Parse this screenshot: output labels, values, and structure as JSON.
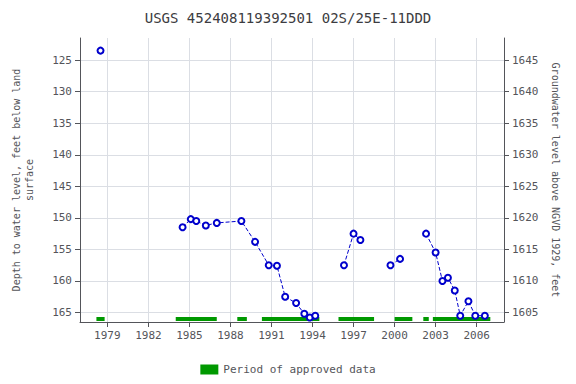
{
  "chart_data": {
    "type": "line",
    "title": "USGS 452408119392501 02S/25E-11DDD",
    "ylabel": "Depth to water level, feet below land\nsurface",
    "y2label": "Groundwater level above NGVD 1929, feet",
    "xlim": [
      1977.0,
      2008.0
    ],
    "xticks": [
      1979,
      1982,
      1985,
      1988,
      1991,
      1994,
      1997,
      2000,
      2003,
      2006
    ],
    "ylim": [
      166.5,
      121.5
    ],
    "yticks": [
      125,
      130,
      135,
      140,
      145,
      150,
      155,
      160,
      165
    ],
    "y2lim": [
      1603.5,
      1648.5
    ],
    "y2ticks": [
      1645,
      1640,
      1635,
      1630,
      1625,
      1620,
      1615,
      1610,
      1605
    ],
    "grid": true,
    "legend": "bottom",
    "series": [
      {
        "type": "line",
        "color": "#0000cc",
        "marker": "circle",
        "line_style": "dashed",
        "x": [
          1978.5
        ],
        "values": [
          123.5
        ]
      },
      {
        "type": "line",
        "color": "#0000cc",
        "marker": "circle",
        "line_style": "dashed",
        "x": [
          1984.5,
          1985.1,
          1985.5,
          1986.2,
          1987.0,
          1988.8,
          1989.8,
          1990.8,
          1991.4,
          1992.0,
          1992.8,
          1993.4,
          1993.8
        ],
        "values": [
          151.5,
          150.2,
          150.5,
          151.2,
          150.8,
          150.5,
          153.8,
          157.5,
          157.6,
          162.5,
          163.5,
          165.2,
          165.8
        ]
      },
      {
        "type": "line",
        "color": "#0000cc",
        "marker": "circle",
        "line_style": "dashed",
        "x": [
          1994.2
        ],
        "values": [
          165.5
        ]
      },
      {
        "type": "line",
        "color": "#0000cc",
        "marker": "circle",
        "line_style": "dashed",
        "x": [
          1996.3,
          1997.0,
          1997.5
        ],
        "values": [
          157.5,
          152.5,
          153.5
        ]
      },
      {
        "type": "line",
        "color": "#0000cc",
        "marker": "circle",
        "line_style": "dashed",
        "x": [
          1999.7,
          2000.4
        ],
        "values": [
          157.5,
          156.5
        ]
      },
      {
        "type": "line",
        "color": "#0000cc",
        "marker": "circle",
        "line_style": "dashed",
        "x": [
          2002.3,
          2003.0,
          2003.5,
          2003.9,
          2004.4,
          2004.8,
          2005.4,
          2005.9,
          2006.6
        ],
        "values": [
          152.5,
          155.5,
          160.0,
          159.5,
          161.5,
          165.5,
          163.2,
          165.5,
          165.5
        ]
      },
      {
        "type": "range",
        "name": "Period of approved data",
        "color": "#009900",
        "ranges": [
          [
            1978.2,
            1978.8
          ],
          [
            1984.0,
            1987.0
          ],
          [
            1988.5,
            1989.2
          ],
          [
            1990.3,
            1993.9
          ],
          [
            1993.9,
            1994.5
          ],
          [
            1995.9,
            1998.5
          ],
          [
            2000.0,
            2001.3
          ],
          [
            2002.1,
            2002.5
          ],
          [
            2002.8,
            2007.0
          ]
        ]
      }
    ]
  }
}
